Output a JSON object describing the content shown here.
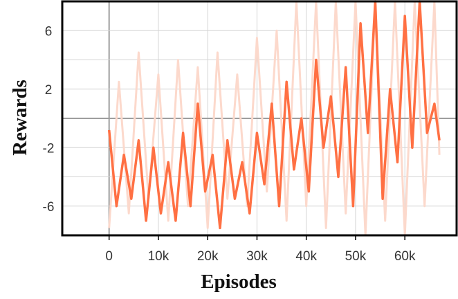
{
  "chart_data": {
    "type": "line",
    "title": "",
    "xlabel": "Episodes",
    "ylabel": "Rewards",
    "x_ticks": [
      {
        "value": 0,
        "label": "0"
      },
      {
        "value": 10000,
        "label": "10k"
      },
      {
        "value": 20000,
        "label": "20k"
      },
      {
        "value": 30000,
        "label": "30k"
      },
      {
        "value": 40000,
        "label": "40k"
      },
      {
        "value": 50000,
        "label": "50k"
      },
      {
        "value": 60000,
        "label": "60k"
      }
    ],
    "y_ticks": [
      {
        "value": -6,
        "label": "-6"
      },
      {
        "value": -2,
        "label": "-2"
      },
      {
        "value": 2,
        "label": "2"
      },
      {
        "value": 6,
        "label": "6"
      }
    ],
    "xlim": [
      -9500,
      70500
    ],
    "ylim": [
      -8,
      8
    ],
    "grid": true,
    "legend": "none",
    "series": [
      {
        "role": "raw",
        "color": "#fcd9cc",
        "x": [
          0,
          2000,
          4000,
          6000,
          8000,
          10000,
          12000,
          14000,
          16000,
          18000,
          20000,
          22000,
          24000,
          26000,
          28000,
          30000,
          32000,
          34000,
          36000,
          38000,
          40000,
          42000,
          44000,
          46000,
          48000,
          50000,
          52000,
          54000,
          56000,
          58000,
          60000,
          62000,
          64000,
          66000,
          67000
        ],
        "y": [
          -7.5,
          2.5,
          -6.5,
          4.5,
          -5.5,
          3.0,
          -7.0,
          4.0,
          -6.0,
          3.5,
          -7.5,
          4.5,
          -5.5,
          3.0,
          -6.0,
          5.5,
          -5.0,
          6.0,
          -7.0,
          8.0,
          -6.0,
          8.0,
          -7.5,
          8.0,
          -6.5,
          8.0,
          -8.0,
          8.0,
          -7.0,
          8.0,
          -8.0,
          8.0,
          -6.0,
          8.0,
          -2.5
        ]
      },
      {
        "role": "smoothed",
        "color": "#ff7043",
        "x": [
          0,
          1500,
          3000,
          4500,
          6000,
          7500,
          9000,
          10500,
          12000,
          13500,
          15000,
          16500,
          18000,
          19500,
          21000,
          22500,
          24000,
          25500,
          27000,
          28500,
          30000,
          31500,
          33000,
          34500,
          36000,
          37500,
          39000,
          40500,
          42000,
          43500,
          45000,
          46500,
          48000,
          49500,
          51000,
          52500,
          54000,
          55500,
          57000,
          58500,
          60000,
          61500,
          63000,
          64500,
          66000,
          67000
        ],
        "y": [
          -0.8,
          -6.0,
          -2.5,
          -5.5,
          -1.5,
          -7.0,
          -2.0,
          -6.5,
          -3.0,
          -7.0,
          -1.0,
          -6.0,
          1.0,
          -5.0,
          -2.5,
          -7.5,
          -1.5,
          -5.5,
          -3.0,
          -6.5,
          -1.0,
          -4.5,
          1.0,
          -6.0,
          2.5,
          -3.5,
          0.0,
          -5.0,
          4.0,
          -2.0,
          1.5,
          -4.0,
          3.5,
          -6.0,
          6.5,
          -1.0,
          8.0,
          -5.5,
          2.0,
          -3.0,
          7.0,
          -2.0,
          8.0,
          -1.0,
          1.0,
          -1.5
        ]
      }
    ]
  }
}
